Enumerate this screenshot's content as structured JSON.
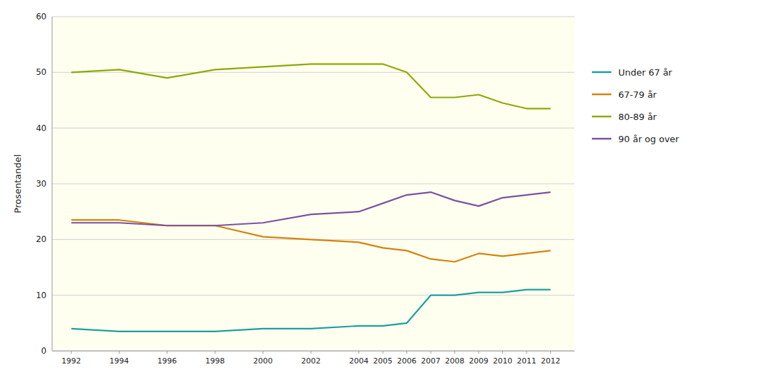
{
  "chart_data": {
    "type": "line",
    "ylabel": "Prosentandel",
    "x": [
      1992,
      1994,
      1996,
      1998,
      2000,
      2002,
      2004,
      2005,
      2006,
      2007,
      2008,
      2009,
      2010,
      2011,
      2012
    ],
    "series": [
      {
        "name": "Under 67 år",
        "color": "#1a9ea0",
        "values": [
          4.0,
          3.5,
          3.5,
          3.5,
          4.0,
          4.0,
          4.5,
          4.5,
          5.0,
          10.0,
          10.0,
          10.5,
          10.5,
          11.0,
          11.0
        ]
      },
      {
        "name": "67-79 år",
        "color": "#d4820a",
        "values": [
          23.5,
          23.5,
          22.5,
          22.5,
          20.5,
          20.0,
          19.5,
          18.5,
          18.0,
          16.5,
          16.0,
          17.5,
          17.0,
          17.5,
          18.0
        ]
      },
      {
        "name": "80-89 år",
        "color": "#8aaa00",
        "values": [
          50.0,
          50.5,
          49.0,
          50.5,
          51.0,
          51.5,
          51.5,
          51.5,
          50.0,
          45.5,
          45.5,
          46.0,
          44.5,
          43.5,
          43.5
        ]
      },
      {
        "name": "90 år og over",
        "color": "#7b4fa0",
        "values": [
          23.0,
          23.0,
          22.5,
          22.5,
          23.0,
          24.5,
          25.0,
          26.5,
          28.0,
          28.5,
          27.0,
          26.0,
          27.5,
          28.0,
          28.5
        ]
      }
    ],
    "xlim": [
      1991.2,
      2013.0
    ],
    "xticks": [
      1992,
      1994,
      1996,
      1998,
      2000,
      2002,
      2004,
      2005,
      2006,
      2007,
      2008,
      2009,
      2010,
      2011,
      2012
    ],
    "ylim": [
      0,
      60
    ],
    "yticks": [
      0,
      10,
      20,
      30,
      40,
      50,
      60
    ],
    "grid": true,
    "legend": "right"
  }
}
